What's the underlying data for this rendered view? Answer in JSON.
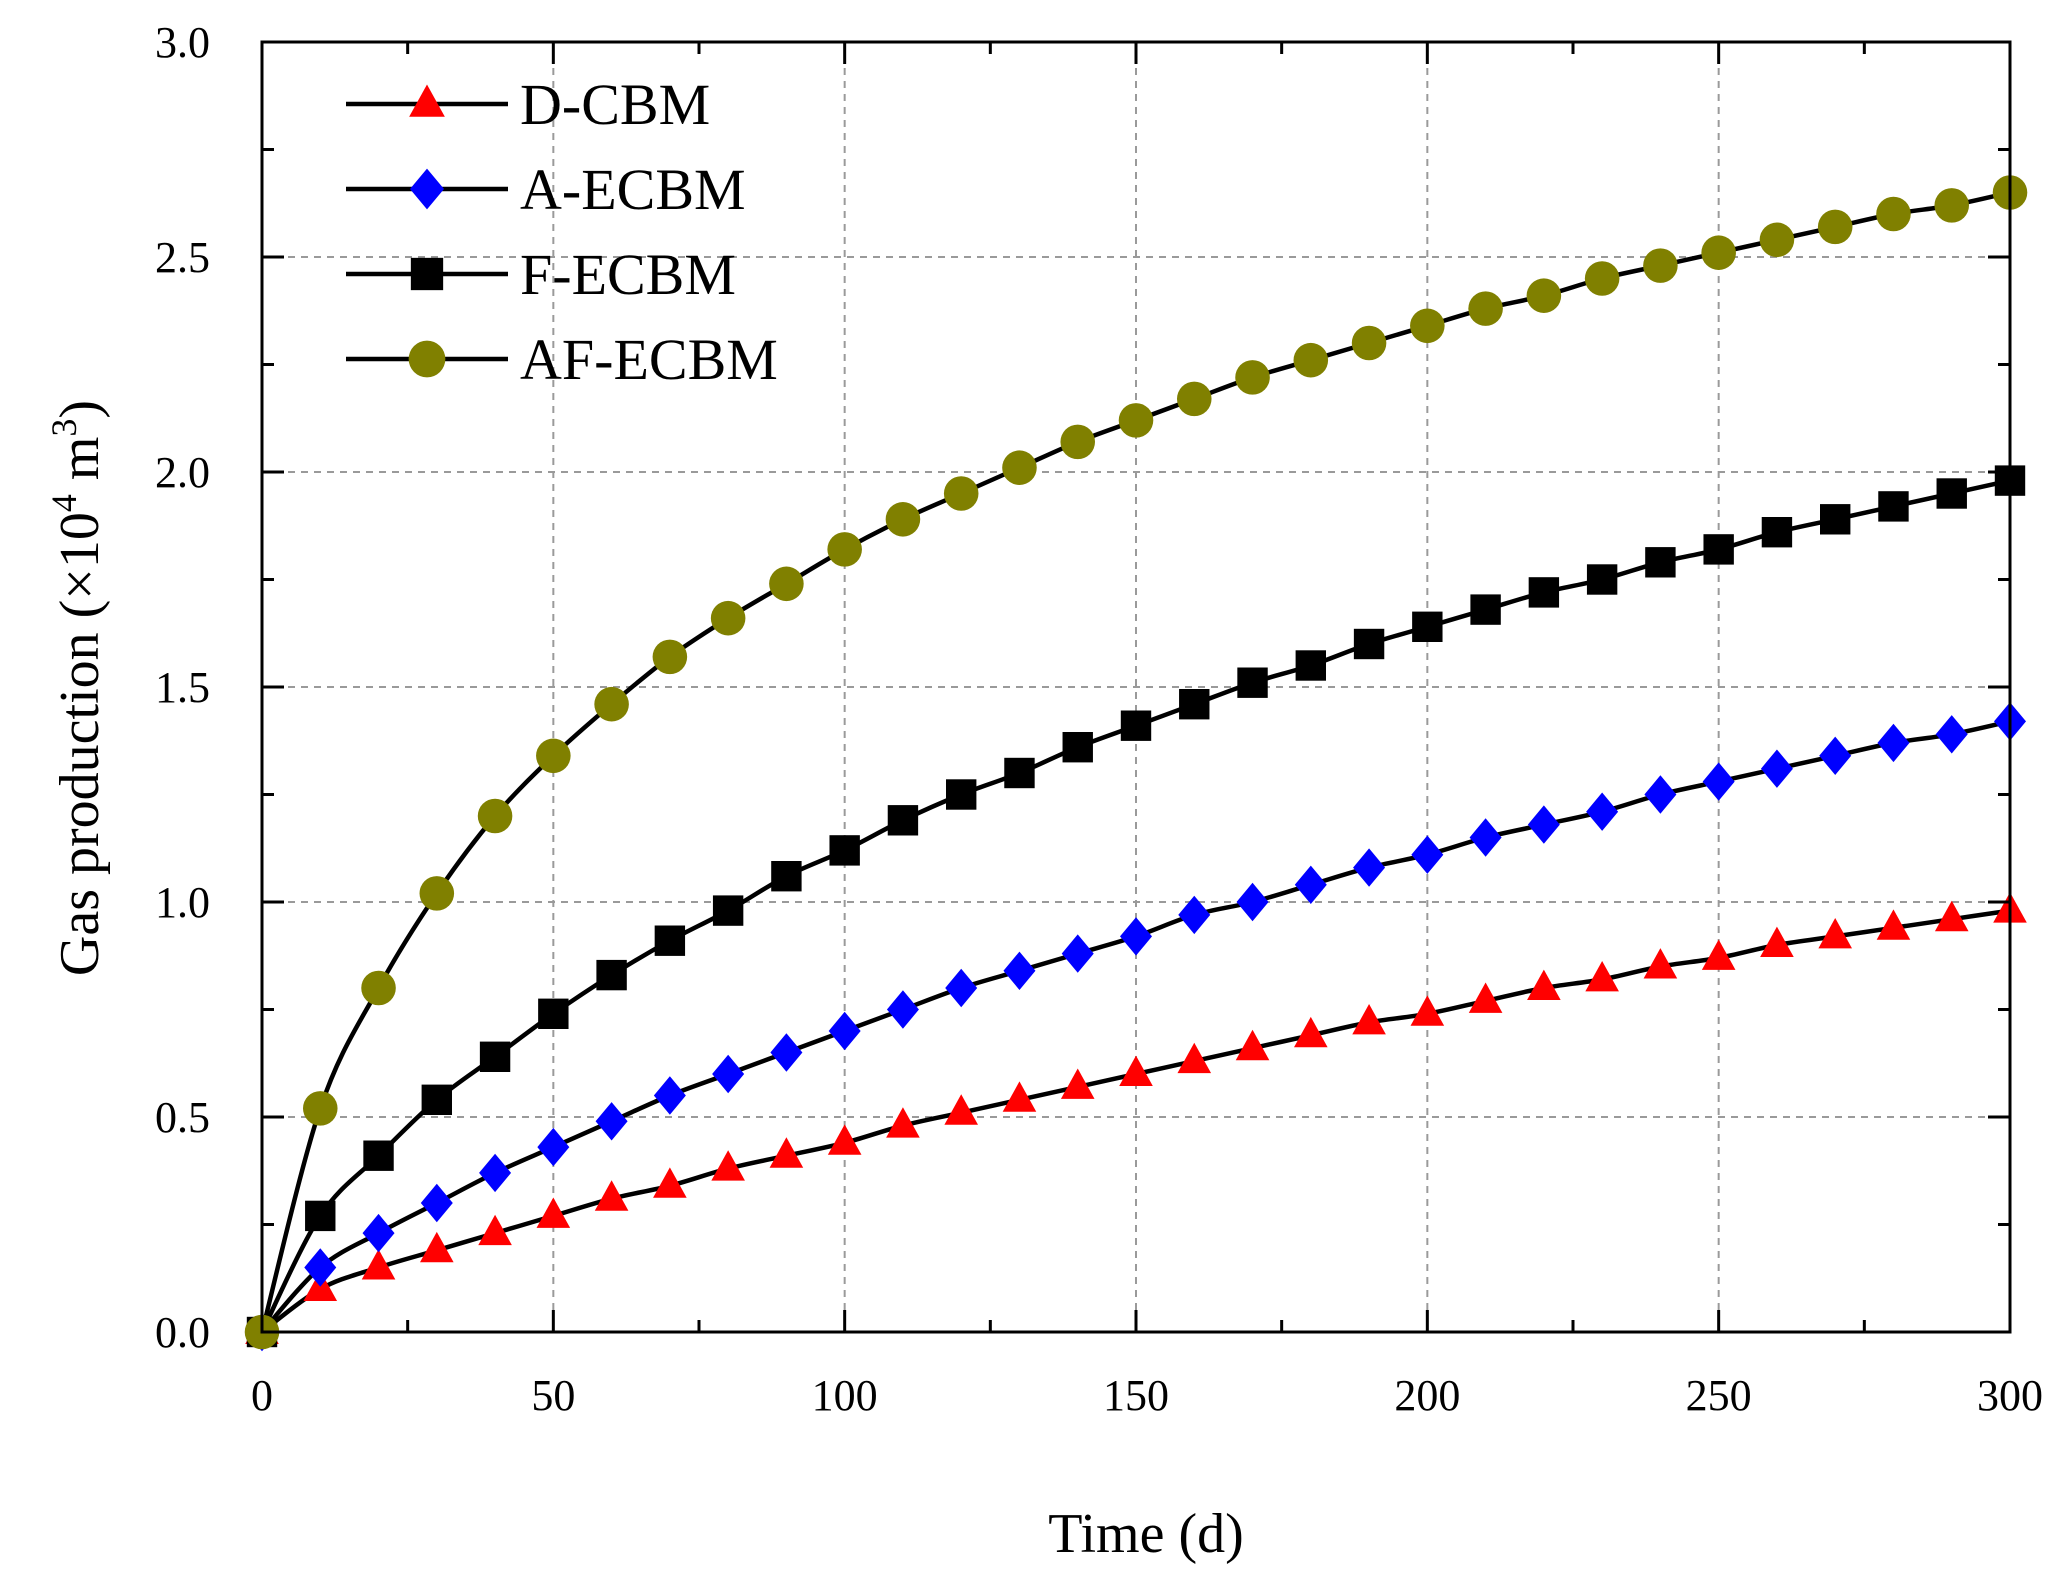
{
  "chart_data": {
    "type": "line",
    "title": "",
    "xlabel": "Time (d)",
    "ylabel": {
      "prefix": "Gas production (×10",
      "sup1": "4",
      "mid": " m",
      "sup2": "3",
      "suffix": ")"
    },
    "xlim": [
      0,
      300
    ],
    "ylim": [
      0,
      3.0
    ],
    "x_ticks": [
      0,
      50,
      100,
      150,
      200,
      250,
      300
    ],
    "x_tick_labels": [
      "0",
      "50",
      "100",
      "150",
      "200",
      "250",
      "300"
    ],
    "y_ticks": [
      0,
      0.5,
      1.0,
      1.5,
      2.0,
      2.5,
      3.0
    ],
    "y_tick_labels": [
      "0.0",
      "0.5",
      "1.0",
      "1.5",
      "2.0",
      "2.5",
      "3.0"
    ],
    "grid": true,
    "legend_position": "top-left",
    "x": [
      0,
      10,
      20,
      30,
      40,
      50,
      60,
      70,
      80,
      90,
      100,
      110,
      120,
      130,
      140,
      150,
      160,
      170,
      180,
      190,
      200,
      210,
      220,
      230,
      240,
      250,
      260,
      270,
      280,
      290,
      300
    ],
    "series": [
      {
        "name": "D-CBM",
        "marker": "triangle",
        "color": "#ff0000",
        "values": [
          0.0,
          0.1,
          0.15,
          0.19,
          0.23,
          0.27,
          0.31,
          0.34,
          0.38,
          0.41,
          0.44,
          0.48,
          0.51,
          0.54,
          0.57,
          0.6,
          0.63,
          0.66,
          0.69,
          0.72,
          0.74,
          0.77,
          0.8,
          0.82,
          0.85,
          0.87,
          0.9,
          0.92,
          0.94,
          0.96,
          0.98
        ]
      },
      {
        "name": "A-ECBM",
        "marker": "diamond",
        "color": "#0000ff",
        "values": [
          0.0,
          0.15,
          0.23,
          0.3,
          0.37,
          0.43,
          0.49,
          0.55,
          0.6,
          0.65,
          0.7,
          0.75,
          0.8,
          0.84,
          0.88,
          0.92,
          0.97,
          1.0,
          1.04,
          1.08,
          1.11,
          1.15,
          1.18,
          1.21,
          1.25,
          1.28,
          1.31,
          1.34,
          1.37,
          1.39,
          1.42
        ]
      },
      {
        "name": "F-ECBM",
        "marker": "square",
        "color": "#000000",
        "values": [
          0.0,
          0.27,
          0.41,
          0.54,
          0.64,
          0.74,
          0.83,
          0.91,
          0.98,
          1.06,
          1.12,
          1.19,
          1.25,
          1.3,
          1.36,
          1.41,
          1.46,
          1.51,
          1.55,
          1.6,
          1.64,
          1.68,
          1.72,
          1.75,
          1.79,
          1.82,
          1.86,
          1.89,
          1.92,
          1.95,
          1.98
        ]
      },
      {
        "name": "AF-ECBM",
        "marker": "circle",
        "color": "#808000",
        "values": [
          0.0,
          0.52,
          0.8,
          1.02,
          1.2,
          1.34,
          1.46,
          1.57,
          1.66,
          1.74,
          1.82,
          1.89,
          1.95,
          2.01,
          2.07,
          2.12,
          2.17,
          2.22,
          2.26,
          2.3,
          2.34,
          2.38,
          2.41,
          2.45,
          2.48,
          2.51,
          2.54,
          2.57,
          2.6,
          2.62,
          2.65
        ]
      }
    ]
  }
}
